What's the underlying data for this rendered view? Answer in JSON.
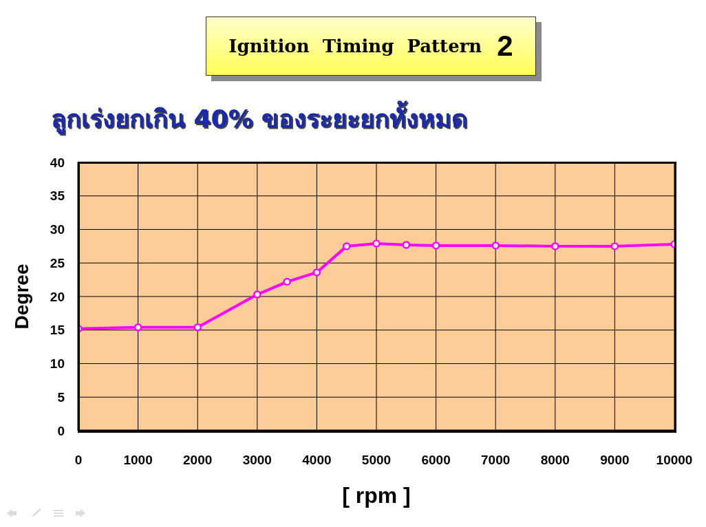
{
  "chart_data": {
    "type": "line",
    "title": "Ignition Timing Pattern 2",
    "subtitle": "ลูกเร่งยกเกิน 40% ของระยะยกทั้งหมด",
    "xlabel": "[ rpm ]",
    "ylabel": "Degree",
    "x": [
      0,
      1000,
      2000,
      3000,
      3500,
      4000,
      4500,
      5000,
      5500,
      6000,
      7000,
      8000,
      9000,
      10000
    ],
    "series": [
      {
        "color": "#ff00ff",
        "values": [
          15.2,
          15.4,
          15.4,
          20.3,
          22.2,
          23.6,
          27.5,
          27.9,
          27.7,
          27.6,
          27.6,
          27.5,
          27.5,
          27.8
        ]
      }
    ],
    "xlim": [
      0,
      10000
    ],
    "xticks": [
      0,
      1000,
      2000,
      3000,
      4000,
      5000,
      6000,
      7000,
      8000,
      9000,
      10000
    ],
    "ylim": [
      0,
      40
    ],
    "yticks": [
      0,
      5,
      10,
      15,
      20,
      25,
      30,
      35,
      40
    ],
    "grid": true,
    "marker": "circle",
    "line_style": "solid"
  }
}
